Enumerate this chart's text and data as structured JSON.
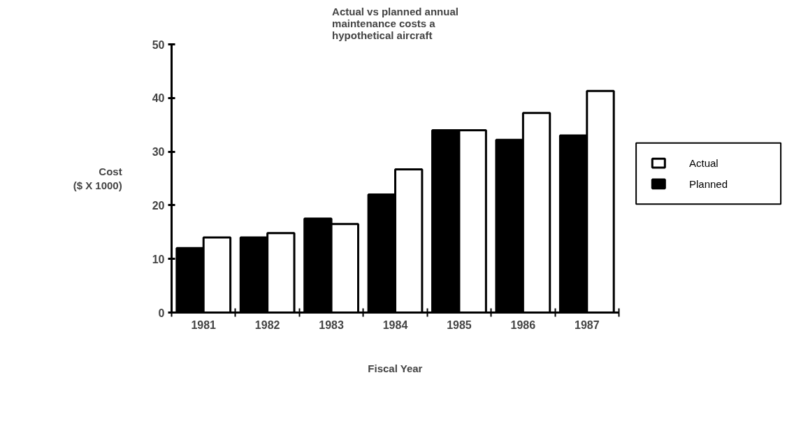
{
  "chart_data": {
    "type": "bar",
    "title": "Actual vs planned annual\nmaintenance costs a\nhypothetical  aircraft",
    "xlabel": "Fiscal Year",
    "ylabel": "Cost\n($ X 1000)",
    "categories": [
      "1981",
      "1982",
      "1983",
      "1984",
      "1985",
      "1986",
      "1987"
    ],
    "series": [
      {
        "name": "Planned",
        "color": "#000000",
        "values": [
          12,
          14,
          17.5,
          22,
          34,
          32.2,
          33
        ]
      },
      {
        "name": "Actual",
        "color": "#ffffff",
        "values": [
          14,
          14.8,
          16.5,
          26.7,
          34,
          37.2,
          41.3
        ]
      }
    ],
    "ylim": [
      0,
      50
    ],
    "yticks": [
      0,
      10,
      20,
      30,
      40,
      50
    ],
    "grid": false,
    "legend": "right"
  }
}
